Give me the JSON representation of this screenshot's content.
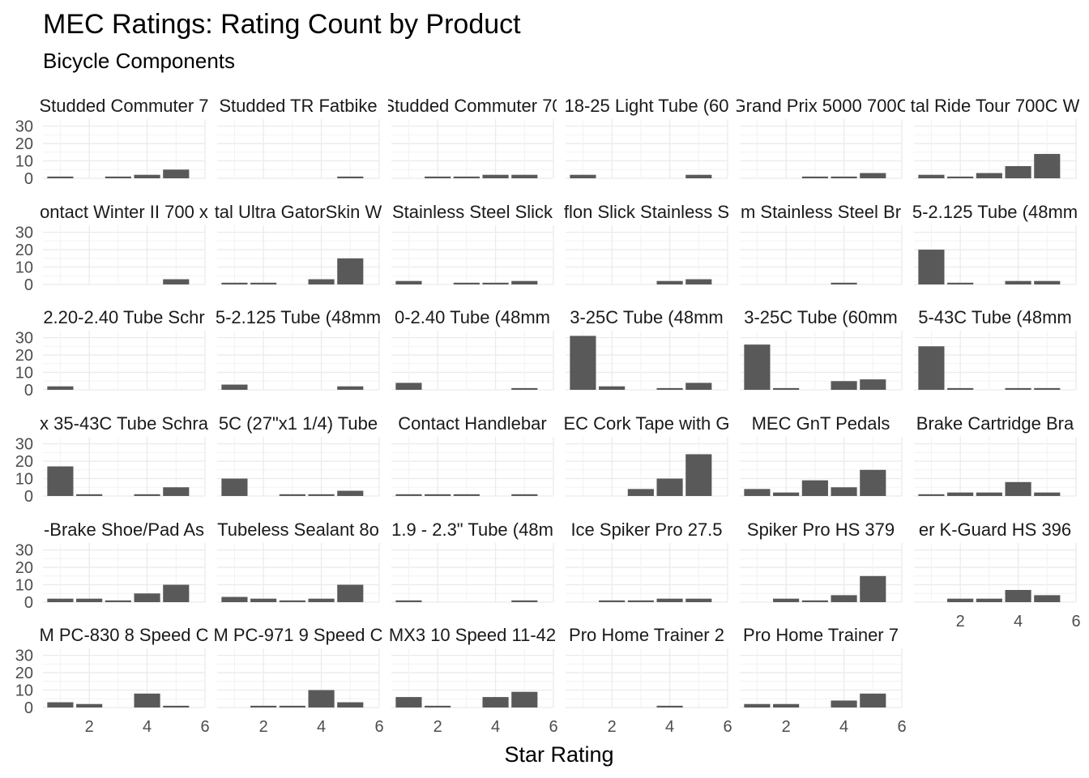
{
  "chart_data": {
    "type": "bar",
    "title": "MEC Ratings: Rating Count by Product",
    "subtitle": "Bicycle Components",
    "xlabel": "Star Rating",
    "ylabel": "",
    "xlim": [
      0.4,
      6
    ],
    "ylim": [
      0,
      34
    ],
    "x_ticks": [
      2,
      4,
      6
    ],
    "y_ticks": [
      0,
      10,
      20,
      30
    ],
    "grid": true,
    "layout": "facet_wrap 6 columns, shared axes",
    "bar_color": "#595959",
    "panels": [
      {
        "label": "Studded Commuter 7",
        "values": [
          1,
          0,
          1,
          2,
          5
        ]
      },
      {
        "label": "Studded TR Fatbike",
        "values": [
          0,
          0,
          0,
          0,
          1
        ]
      },
      {
        "label": "Studded Commuter 70",
        "values": [
          0,
          1,
          1,
          2,
          2
        ]
      },
      {
        "label": "18-25 Light Tube (60",
        "values": [
          2,
          0,
          0,
          0,
          2
        ]
      },
      {
        "label": "Grand Prix 5000 700C",
        "values": [
          0,
          0,
          1,
          1,
          3
        ]
      },
      {
        "label": "tal Ride Tour 700C W",
        "values": [
          2,
          1,
          3,
          7,
          14
        ]
      },
      {
        "label": "ontact Winter II 700 x",
        "values": [
          0,
          0,
          0,
          0,
          3
        ]
      },
      {
        "label": "tal Ultra GatorSkin W",
        "values": [
          1,
          1,
          0,
          3,
          15
        ]
      },
      {
        "label": "Stainless Steel Slick",
        "values": [
          2,
          0,
          1,
          1,
          2
        ]
      },
      {
        "label": "flon Slick Stainless S",
        "values": [
          0,
          0,
          0,
          2,
          3
        ]
      },
      {
        "label": "m Stainless Steel Br",
        "values": [
          0,
          0,
          0,
          1,
          0
        ]
      },
      {
        "label": "5-2.125 Tube (48mm",
        "values": [
          20,
          1,
          0,
          2,
          2
        ]
      },
      {
        "label": "2.20-2.40 Tube Schr",
        "values": [
          2,
          0,
          0,
          0,
          0
        ]
      },
      {
        "label": "5-2.125 Tube (48mm",
        "values": [
          3,
          0,
          0,
          0,
          2
        ]
      },
      {
        "label": "0-2.40 Tube (48mm",
        "values": [
          4,
          0,
          0,
          0,
          1
        ]
      },
      {
        "label": "3-25C Tube (48mm",
        "values": [
          31,
          2,
          0,
          1,
          4
        ]
      },
      {
        "label": "3-25C Tube (60mm",
        "values": [
          26,
          1,
          0,
          5,
          6
        ]
      },
      {
        "label": "5-43C Tube (48mm",
        "values": [
          25,
          1,
          0,
          1,
          1
        ]
      },
      {
        "label": "x 35-43C Tube Schra",
        "values": [
          17,
          1,
          0,
          1,
          5
        ]
      },
      {
        "label": "5C (27\"x1 1/4) Tube",
        "values": [
          10,
          0,
          1,
          1,
          3
        ]
      },
      {
        "label": "Contact Handlebar",
        "values": [
          1,
          1,
          1,
          0,
          1
        ]
      },
      {
        "label": "EC Cork Tape with G",
        "values": [
          0,
          0,
          4,
          10,
          24
        ]
      },
      {
        "label": "MEC GnT Pedals",
        "values": [
          4,
          2,
          9,
          5,
          15
        ]
      },
      {
        "label": "Brake Cartridge Bra",
        "values": [
          1,
          2,
          2,
          8,
          2
        ]
      },
      {
        "label": "-Brake Shoe/Pad As",
        "values": [
          2,
          2,
          1,
          5,
          10
        ]
      },
      {
        "label": "Tubeless Sealant 8o",
        "values": [
          3,
          2,
          1,
          2,
          10
        ]
      },
      {
        "label": "1.9 - 2.3\" Tube (48m",
        "values": [
          1,
          0,
          0,
          0,
          1
        ]
      },
      {
        "label": "Ice Spiker Pro 27.5",
        "values": [
          0,
          1,
          1,
          2,
          2
        ]
      },
      {
        "label": "Spiker Pro HS 379",
        "values": [
          0,
          2,
          1,
          4,
          15
        ]
      },
      {
        "label": "er K-Guard HS 396",
        "values": [
          0,
          2,
          2,
          7,
          4
        ]
      },
      {
        "label": "M PC-830 8 Speed C",
        "values": [
          3,
          2,
          0,
          8,
          1
        ]
      },
      {
        "label": "M PC-971 9 Speed C",
        "values": [
          0,
          1,
          1,
          10,
          3
        ]
      },
      {
        "label": "MX3 10 Speed 11-42",
        "values": [
          6,
          1,
          0,
          6,
          9
        ]
      },
      {
        "label": "Pro Home Trainer 2",
        "values": [
          0,
          0,
          0,
          1,
          0
        ]
      },
      {
        "label": "Pro Home Trainer 7",
        "values": [
          2,
          2,
          0,
          4,
          8
        ]
      }
    ]
  }
}
